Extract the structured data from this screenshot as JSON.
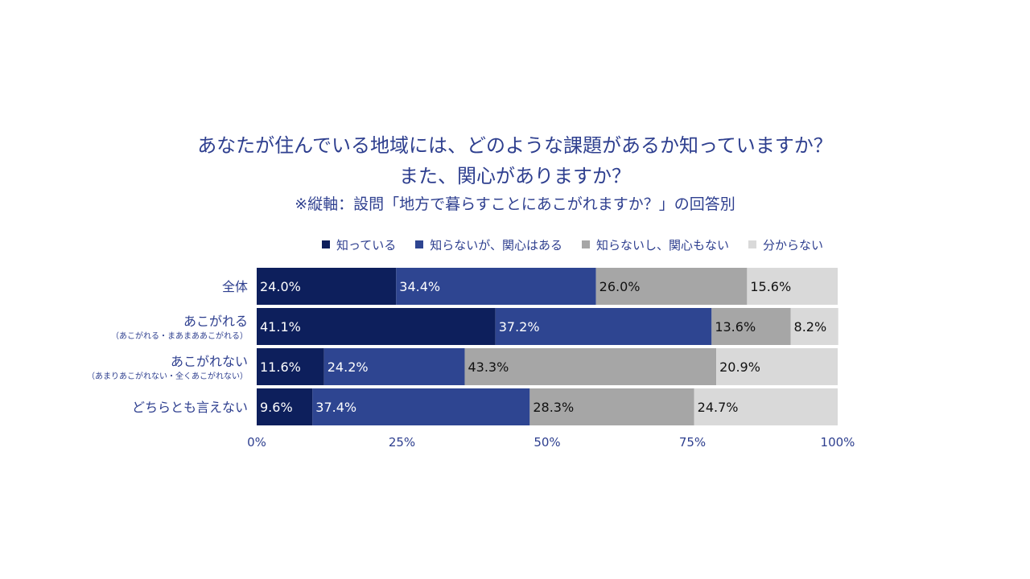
{
  "chart_data": {
    "type": "bar",
    "stacked": true,
    "orientation": "horizontal",
    "title": "あなたが住んでいる地域には、どのような課題があるか知っていますか？",
    "title_line2": "また、関心がありますか？",
    "subtitle": "※縦軸：設問「地方で暮らすことにあこがれますか？」の回答別",
    "categories": [
      {
        "label": "全体",
        "sublabel": ""
      },
      {
        "label": "あこがれる",
        "sublabel": "（あこがれる・まあまああこがれる）"
      },
      {
        "label": "あこがれない",
        "sublabel": "（あまりあこがれない・全くあこがれない）"
      },
      {
        "label": "どちらとも言えない",
        "sublabel": ""
      }
    ],
    "series": [
      {
        "name": "知っている",
        "color": "#0d1f5c",
        "label_color": "#ffffff",
        "values": [
          24.0,
          41.1,
          11.6,
          9.6
        ]
      },
      {
        "name": "知らないが、関心はある",
        "color": "#2e4591",
        "label_color": "#ffffff",
        "values": [
          34.4,
          37.2,
          24.2,
          37.4
        ]
      },
      {
        "name": "知らないし、関心もない",
        "color": "#a6a6a6",
        "label_color": "#111111",
        "values": [
          26.0,
          13.6,
          43.3,
          28.3
        ]
      },
      {
        "name": "分からない",
        "color": "#d9d9d9",
        "label_color": "#111111",
        "values": [
          15.6,
          8.2,
          20.9,
          24.7
        ]
      }
    ],
    "data_labels": [
      [
        "24.0%",
        "34.4%",
        "26.0%",
        "15.6%"
      ],
      [
        "41.1%",
        "37.2%",
        "13.6%",
        "8.2%"
      ],
      [
        "11.6%",
        "24.2%",
        "43.3%",
        "20.9%"
      ],
      [
        "9.6%",
        "37.4%",
        "28.3%",
        "24.7%"
      ]
    ],
    "x_ticks": [
      "0%",
      "25%",
      "50%",
      "75%",
      "100%"
    ],
    "xlim": [
      0,
      100
    ],
    "legend_position": "top",
    "grid": false
  }
}
